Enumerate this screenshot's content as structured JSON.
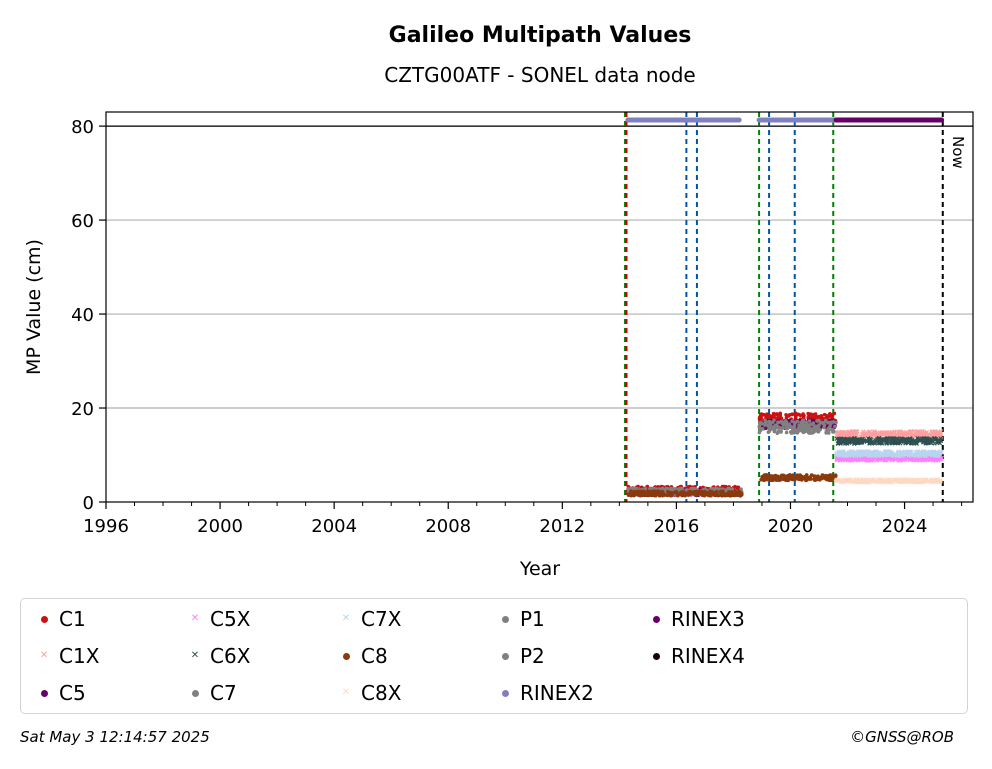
{
  "chart_data": {
    "type": "scatter",
    "title": "Galileo Multipath Values",
    "subtitle": "CZTG00ATF - SONEL data node",
    "xlabel": "Year",
    "ylabel": "MP Value (cm)",
    "xlim": [
      1996,
      2026.4
    ],
    "ylim": [
      0,
      83
    ],
    "xticks": [
      1996,
      2000,
      2004,
      2008,
      2012,
      2016,
      2020,
      2024
    ],
    "yticks": [
      0,
      20,
      40,
      60,
      80
    ],
    "grid": "horizontal",
    "legend_position": "bottom",
    "now_label": "Now",
    "now_year": 2025.34,
    "reference_line_y": 80,
    "vertical_lines": [
      {
        "x": 2014.2,
        "color": "#007f00"
      },
      {
        "x": 2014.25,
        "color": "#cc0000"
      },
      {
        "x": 2016.35,
        "color": "#0055aa"
      },
      {
        "x": 2016.72,
        "color": "#0055aa"
      },
      {
        "x": 2018.9,
        "color": "#007f00"
      },
      {
        "x": 2019.25,
        "color": "#0055aa"
      },
      {
        "x": 2020.15,
        "color": "#0055aa"
      },
      {
        "x": 2021.5,
        "color": "#007f00"
      }
    ],
    "rinex_bars": [
      {
        "name": "RINEX2",
        "x_start": 2014.3,
        "x_end": 2018.2,
        "y": 81.3,
        "color": "#8080c0"
      },
      {
        "name": "RINEX2",
        "x_start": 2018.9,
        "x_end": 2021.55,
        "y": 81.3,
        "color": "#8080c0"
      },
      {
        "name": "RINEX3",
        "x_start": 2021.6,
        "x_end": 2025.3,
        "y": 81.3,
        "color": "#660066"
      }
    ],
    "series": [
      {
        "name": "C1",
        "color": "#cc1111",
        "marker": "dot",
        "segments": [
          {
            "x": [
              2014.3,
              2018.3
            ],
            "y": 2.5,
            "spread": 0.8
          },
          {
            "x": [
              2018.9,
              2021.6
            ],
            "y": 17.5,
            "spread": 1.4
          }
        ]
      },
      {
        "name": "C1X",
        "color": "#ff9f9f",
        "marker": "x",
        "segments": [
          {
            "x": [
              2021.6,
              2025.3
            ],
            "y": 14.5,
            "spread": 0.6
          }
        ]
      },
      {
        "name": "C5",
        "color": "#660066",
        "marker": "dot",
        "segments": [
          {
            "x": [
              2014.3,
              2018.3
            ],
            "y": 2.0,
            "spread": 0.6
          },
          {
            "x": [
              2018.9,
              2021.6
            ],
            "y": 16.5,
            "spread": 0.9
          }
        ]
      },
      {
        "name": "C5X",
        "color": "#ff80ff",
        "marker": "x",
        "segments": [
          {
            "x": [
              2021.6,
              2025.3
            ],
            "y": 9.2,
            "spread": 0.4
          }
        ]
      },
      {
        "name": "C6X",
        "color": "#2f5050",
        "marker": "x",
        "segments": [
          {
            "x": [
              2021.6,
              2025.3
            ],
            "y": 13.0,
            "spread": 0.6
          }
        ]
      },
      {
        "name": "C7",
        "color": "#808080",
        "marker": "dot",
        "segments": [
          {
            "x": [
              2014.3,
              2018.3
            ],
            "y": 2.2,
            "spread": 0.7
          },
          {
            "x": [
              2018.9,
              2021.6
            ],
            "y": 16.0,
            "spread": 1.4
          }
        ]
      },
      {
        "name": "C7X",
        "color": "#b8d4ee",
        "marker": "x",
        "segments": [
          {
            "x": [
              2021.6,
              2025.3
            ],
            "y": 10.3,
            "spread": 0.5
          }
        ]
      },
      {
        "name": "C8",
        "color": "#8b3a0e",
        "marker": "dot",
        "segments": [
          {
            "x": [
              2014.3,
              2018.3
            ],
            "y": 1.8,
            "spread": 0.5
          },
          {
            "x": [
              2018.9,
              2021.6
            ],
            "y": 5.2,
            "spread": 0.6
          }
        ]
      },
      {
        "name": "C8X",
        "color": "#ffd8c4",
        "marker": "x",
        "segments": [
          {
            "x": [
              2021.6,
              2025.3
            ],
            "y": 4.5,
            "spread": 0.3
          }
        ]
      },
      {
        "name": "P1",
        "color": "#808080",
        "marker": "dot",
        "segments": []
      },
      {
        "name": "P2",
        "color": "#808080",
        "marker": "dot",
        "segments": []
      },
      {
        "name": "RINEX2",
        "color": "#8080c0",
        "marker": "dot",
        "segments": []
      },
      {
        "name": "RINEX3",
        "color": "#660066",
        "marker": "dot",
        "segments": []
      },
      {
        "name": "RINEX4",
        "color": "#1a0010",
        "marker": "dot",
        "segments": []
      }
    ]
  },
  "legend": [
    {
      "label": "C1",
      "color": "#cc1111",
      "marker": "dot"
    },
    {
      "label": "C1X",
      "color": "#ff9f9f",
      "marker": "x"
    },
    {
      "label": "C5",
      "color": "#660066",
      "marker": "dot"
    },
    {
      "label": "C5X",
      "color": "#ff80ff",
      "marker": "x"
    },
    {
      "label": "C6X",
      "color": "#2f5050",
      "marker": "x"
    },
    {
      "label": "C7",
      "color": "#808080",
      "marker": "dot"
    },
    {
      "label": "C7X",
      "color": "#b8d4ee",
      "marker": "x"
    },
    {
      "label": "C8",
      "color": "#8b3a0e",
      "marker": "dot"
    },
    {
      "label": "C8X",
      "color": "#ffd8c4",
      "marker": "x"
    },
    {
      "label": "P1",
      "color": "#808080",
      "marker": "dot"
    },
    {
      "label": "P2",
      "color": "#808080",
      "marker": "dot"
    },
    {
      "label": "RINEX2",
      "color": "#8080c0",
      "marker": "dot"
    },
    {
      "label": "RINEX3",
      "color": "#660066",
      "marker": "dot"
    },
    {
      "label": "RINEX4",
      "color": "#1a0010",
      "marker": "dot"
    }
  ],
  "footer": {
    "timestamp": "Sat May  3 12:14:57 2025",
    "credit": "©GNSS@ROB"
  }
}
